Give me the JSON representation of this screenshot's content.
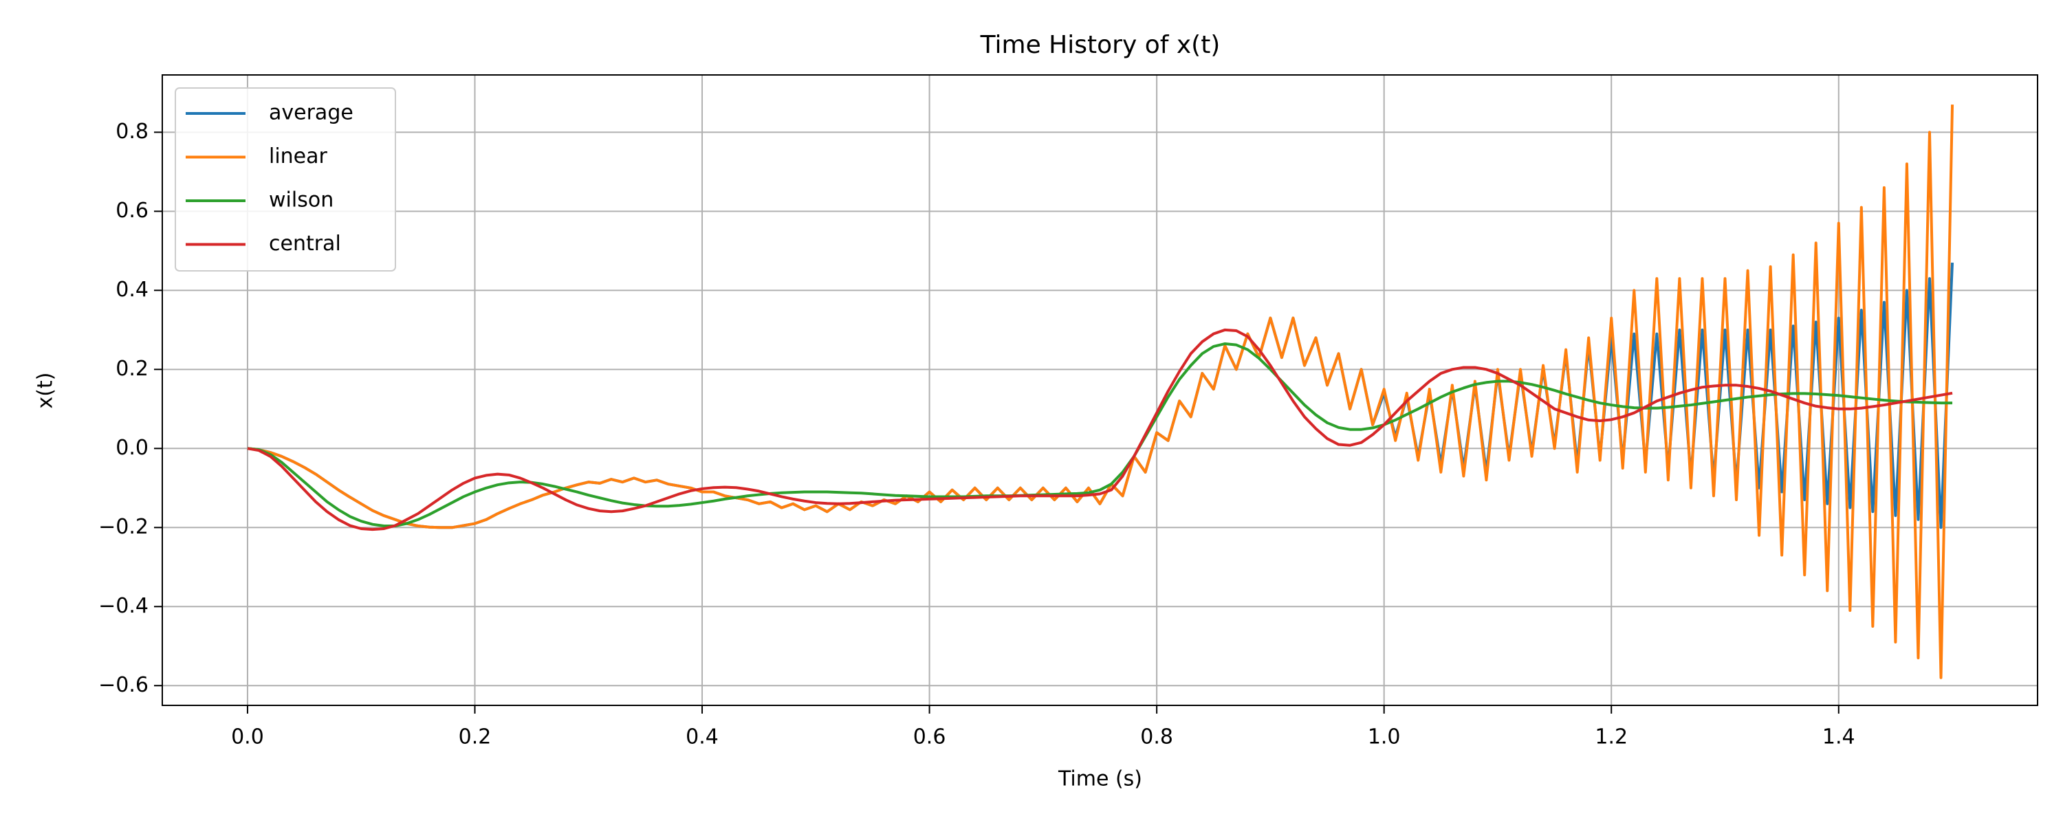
{
  "chart_data": {
    "type": "line",
    "title": "Time History of x(t)",
    "x_label": "Time (s)",
    "y_label": "x(t)",
    "x": [
      0,
      0.01,
      0.02,
      0.03,
      0.04,
      0.05,
      0.06,
      0.07,
      0.08,
      0.09,
      0.1,
      0.11,
      0.12,
      0.13,
      0.14,
      0.15,
      0.16,
      0.17,
      0.18,
      0.19,
      0.2,
      0.21,
      0.22,
      0.23,
      0.24,
      0.25,
      0.26,
      0.27,
      0.28,
      0.29,
      0.3,
      0.31,
      0.32,
      0.33,
      0.34,
      0.35,
      0.36,
      0.37,
      0.38,
      0.39,
      0.4,
      0.41,
      0.42,
      0.43,
      0.44,
      0.45,
      0.46,
      0.47,
      0.48,
      0.49,
      0.5,
      0.51,
      0.52,
      0.53,
      0.54,
      0.55,
      0.56,
      0.57,
      0.58,
      0.59,
      0.6,
      0.61,
      0.62,
      0.63,
      0.64,
      0.65,
      0.66,
      0.67,
      0.68,
      0.69,
      0.7,
      0.71,
      0.72,
      0.73,
      0.74,
      0.75,
      0.76,
      0.77,
      0.78,
      0.79,
      0.8,
      0.81,
      0.82,
      0.83,
      0.84,
      0.85,
      0.86,
      0.87,
      0.88,
      0.89,
      0.9,
      0.91,
      0.92,
      0.93,
      0.94,
      0.95,
      0.96,
      0.97,
      0.98,
      0.99,
      1.0,
      1.01,
      1.02,
      1.03,
      1.04,
      1.05,
      1.06,
      1.07,
      1.08,
      1.09,
      1.1,
      1.11,
      1.12,
      1.13,
      1.14,
      1.15,
      1.16,
      1.17,
      1.18,
      1.19,
      1.2,
      1.21,
      1.22,
      1.23,
      1.24,
      1.25,
      1.26,
      1.27,
      1.28,
      1.29,
      1.3,
      1.31,
      1.32,
      1.33,
      1.34,
      1.35,
      1.36,
      1.37,
      1.38,
      1.39,
      1.4,
      1.41,
      1.42,
      1.43,
      1.44,
      1.45,
      1.46,
      1.47,
      1.48,
      1.49,
      1.5
    ],
    "series": [
      {
        "name": "average",
        "color": "#1f77b4",
        "values": [
          0,
          -0.003,
          -0.01,
          -0.02,
          -0.033,
          -0.048,
          -0.065,
          -0.085,
          -0.105,
          -0.123,
          -0.14,
          -0.157,
          -0.17,
          -0.18,
          -0.19,
          -0.196,
          -0.199,
          -0.2,
          -0.2,
          -0.195,
          -0.19,
          -0.18,
          -0.165,
          -0.152,
          -0.14,
          -0.13,
          -0.118,
          -0.11,
          -0.1,
          -0.092,
          -0.085,
          -0.088,
          -0.078,
          -0.085,
          -0.075,
          -0.085,
          -0.08,
          -0.09,
          -0.095,
          -0.1,
          -0.11,
          -0.11,
          -0.12,
          -0.125,
          -0.13,
          -0.14,
          -0.135,
          -0.15,
          -0.14,
          -0.155,
          -0.145,
          -0.16,
          -0.14,
          -0.155,
          -0.135,
          -0.145,
          -0.13,
          -0.14,
          -0.12,
          -0.135,
          -0.11,
          -0.135,
          -0.105,
          -0.13,
          -0.1,
          -0.13,
          -0.1,
          -0.13,
          -0.1,
          -0.13,
          -0.1,
          -0.13,
          -0.1,
          -0.135,
          -0.1,
          -0.14,
          -0.09,
          -0.12,
          -0.02,
          -0.06,
          0.04,
          0.02,
          0.12,
          0.08,
          0.19,
          0.15,
          0.26,
          0.2,
          0.29,
          0.23,
          0.33,
          0.23,
          0.33,
          0.21,
          0.28,
          0.16,
          0.24,
          0.1,
          0.2,
          0.06,
          0.14,
          0.03,
          0.13,
          -0.02,
          0.14,
          -0.04,
          0.15,
          -0.05,
          0.16,
          -0.06,
          0.19,
          -0.02,
          0.19,
          -0.01,
          0.2,
          0.01,
          0.24,
          -0.04,
          0.26,
          -0.02,
          0.28,
          -0.03,
          0.29,
          -0.04,
          0.29,
          -0.05,
          0.3,
          -0.07,
          0.3,
          -0.08,
          0.3,
          -0.09,
          0.3,
          -0.1,
          0.3,
          -0.11,
          0.31,
          -0.13,
          0.32,
          -0.14,
          0.33,
          -0.15,
          0.35,
          -0.16,
          0.37,
          -0.17,
          0.4,
          -0.18,
          0.43,
          -0.2,
          0.47
        ]
      },
      {
        "name": "linear",
        "color": "#ff7f0e",
        "values": [
          0,
          -0.003,
          -0.01,
          -0.02,
          -0.033,
          -0.048,
          -0.065,
          -0.085,
          -0.105,
          -0.123,
          -0.14,
          -0.157,
          -0.17,
          -0.18,
          -0.19,
          -0.196,
          -0.199,
          -0.2,
          -0.2,
          -0.195,
          -0.19,
          -0.18,
          -0.165,
          -0.152,
          -0.14,
          -0.13,
          -0.118,
          -0.11,
          -0.1,
          -0.092,
          -0.085,
          -0.088,
          -0.078,
          -0.085,
          -0.075,
          -0.085,
          -0.08,
          -0.09,
          -0.095,
          -0.1,
          -0.11,
          -0.11,
          -0.12,
          -0.125,
          -0.13,
          -0.14,
          -0.135,
          -0.15,
          -0.14,
          -0.155,
          -0.145,
          -0.16,
          -0.14,
          -0.155,
          -0.135,
          -0.145,
          -0.13,
          -0.14,
          -0.12,
          -0.135,
          -0.11,
          -0.135,
          -0.105,
          -0.13,
          -0.1,
          -0.13,
          -0.1,
          -0.13,
          -0.1,
          -0.13,
          -0.1,
          -0.13,
          -0.1,
          -0.135,
          -0.1,
          -0.14,
          -0.09,
          -0.12,
          -0.02,
          -0.06,
          0.04,
          0.02,
          0.12,
          0.08,
          0.19,
          0.15,
          0.26,
          0.2,
          0.29,
          0.23,
          0.33,
          0.23,
          0.33,
          0.21,
          0.28,
          0.16,
          0.24,
          0.1,
          0.2,
          0.06,
          0.15,
          0.02,
          0.14,
          -0.03,
          0.15,
          -0.06,
          0.16,
          -0.07,
          0.17,
          -0.08,
          0.2,
          -0.03,
          0.2,
          -0.02,
          0.21,
          0,
          0.25,
          -0.06,
          0.28,
          -0.03,
          0.33,
          -0.05,
          0.4,
          -0.06,
          0.43,
          -0.08,
          0.43,
          -0.1,
          0.43,
          -0.12,
          0.43,
          -0.13,
          0.45,
          -0.22,
          0.46,
          -0.27,
          0.49,
          -0.32,
          0.52,
          -0.36,
          0.57,
          -0.41,
          0.61,
          -0.45,
          0.66,
          -0.49,
          0.72,
          -0.53,
          0.8,
          -0.58,
          0.87
        ]
      },
      {
        "name": "wilson",
        "color": "#2ca02c",
        "values": [
          0,
          -0.003,
          -0.015,
          -0.035,
          -0.06,
          -0.085,
          -0.11,
          -0.135,
          -0.155,
          -0.172,
          -0.184,
          -0.192,
          -0.196,
          -0.196,
          -0.19,
          -0.18,
          -0.167,
          -0.152,
          -0.137,
          -0.122,
          -0.11,
          -0.1,
          -0.092,
          -0.087,
          -0.085,
          -0.086,
          -0.09,
          -0.096,
          -0.103,
          -0.11,
          -0.118,
          -0.125,
          -0.132,
          -0.138,
          -0.142,
          -0.145,
          -0.146,
          -0.146,
          -0.144,
          -0.141,
          -0.137,
          -0.133,
          -0.128,
          -0.124,
          -0.12,
          -0.117,
          -0.114,
          -0.112,
          -0.111,
          -0.11,
          -0.11,
          -0.11,
          -0.111,
          -0.112,
          -0.113,
          -0.115,
          -0.117,
          -0.119,
          -0.12,
          -0.121,
          -0.122,
          -0.122,
          -0.122,
          -0.122,
          -0.121,
          -0.12,
          -0.12,
          -0.12,
          -0.119,
          -0.118,
          -0.117,
          -0.116,
          -0.115,
          -0.114,
          -0.112,
          -0.105,
          -0.09,
          -0.06,
          -0.02,
          0.03,
          0.08,
          0.13,
          0.175,
          0.21,
          0.24,
          0.258,
          0.265,
          0.262,
          0.25,
          0.228,
          0.2,
          0.17,
          0.14,
          0.11,
          0.085,
          0.065,
          0.053,
          0.048,
          0.048,
          0.052,
          0.06,
          0.072,
          0.086,
          0.1,
          0.115,
          0.13,
          0.143,
          0.153,
          0.162,
          0.167,
          0.17,
          0.17,
          0.167,
          0.162,
          0.155,
          0.147,
          0.138,
          0.13,
          0.122,
          0.115,
          0.11,
          0.106,
          0.103,
          0.102,
          0.102,
          0.104,
          0.107,
          0.11,
          0.114,
          0.118,
          0.122,
          0.126,
          0.13,
          0.133,
          0.136,
          0.138,
          0.139,
          0.139,
          0.138,
          0.136,
          0.134,
          0.131,
          0.128,
          0.125,
          0.122,
          0.12,
          0.118,
          0.117,
          0.116,
          0.115,
          0.115
        ]
      },
      {
        "name": "central",
        "color": "#d62728",
        "values": [
          0,
          -0.005,
          -0.02,
          -0.045,
          -0.075,
          -0.105,
          -0.135,
          -0.16,
          -0.18,
          -0.195,
          -0.203,
          -0.205,
          -0.203,
          -0.195,
          -0.18,
          -0.165,
          -0.145,
          -0.125,
          -0.105,
          -0.088,
          -0.075,
          -0.068,
          -0.065,
          -0.067,
          -0.075,
          -0.087,
          -0.1,
          -0.115,
          -0.13,
          -0.143,
          -0.152,
          -0.158,
          -0.16,
          -0.158,
          -0.152,
          -0.145,
          -0.135,
          -0.125,
          -0.115,
          -0.107,
          -0.102,
          -0.099,
          -0.098,
          -0.099,
          -0.103,
          -0.108,
          -0.115,
          -0.122,
          -0.128,
          -0.133,
          -0.137,
          -0.139,
          -0.14,
          -0.139,
          -0.137,
          -0.135,
          -0.133,
          -0.131,
          -0.13,
          -0.129,
          -0.128,
          -0.127,
          -0.126,
          -0.125,
          -0.124,
          -0.123,
          -0.122,
          -0.121,
          -0.12,
          -0.12,
          -0.12,
          -0.12,
          -0.12,
          -0.12,
          -0.118,
          -0.115,
          -0.105,
          -0.07,
          -0.02,
          0.035,
          0.09,
          0.145,
          0.195,
          0.24,
          0.27,
          0.29,
          0.3,
          0.298,
          0.283,
          0.25,
          0.21,
          0.165,
          0.12,
          0.08,
          0.05,
          0.025,
          0.01,
          0.008,
          0.015,
          0.035,
          0.06,
          0.09,
          0.12,
          0.145,
          0.17,
          0.19,
          0.2,
          0.205,
          0.205,
          0.2,
          0.19,
          0.175,
          0.16,
          0.14,
          0.12,
          0.1,
          0.09,
          0.08,
          0.072,
          0.07,
          0.073,
          0.08,
          0.09,
          0.105,
          0.12,
          0.13,
          0.14,
          0.148,
          0.155,
          0.158,
          0.16,
          0.16,
          0.157,
          0.152,
          0.145,
          0.135,
          0.125,
          0.115,
          0.107,
          0.103,
          0.1,
          0.1,
          0.102,
          0.106,
          0.11,
          0.115,
          0.12,
          0.125,
          0.13,
          0.135,
          0.14
        ]
      }
    ],
    "xlim": [
      -0.075,
      1.575
    ],
    "ylim": [
      -0.65,
      0.945
    ],
    "xticks": [
      {
        "value": 0,
        "label": "0.0"
      },
      0.2,
      0.4,
      0.6,
      0.8,
      {
        "value": 1,
        "label": "1.0"
      },
      1.2,
      1.4
    ],
    "yticks": [
      {
        "value": -0.6,
        "label": "−0.6"
      },
      {
        "value": -0.4,
        "label": "−0.4"
      },
      {
        "value": -0.2,
        "label": "−0.2"
      },
      {
        "value": 0,
        "label": "0.0"
      },
      0.2,
      0.4,
      0.6,
      0.8
    ],
    "grid": true,
    "legend": "upper left"
  }
}
